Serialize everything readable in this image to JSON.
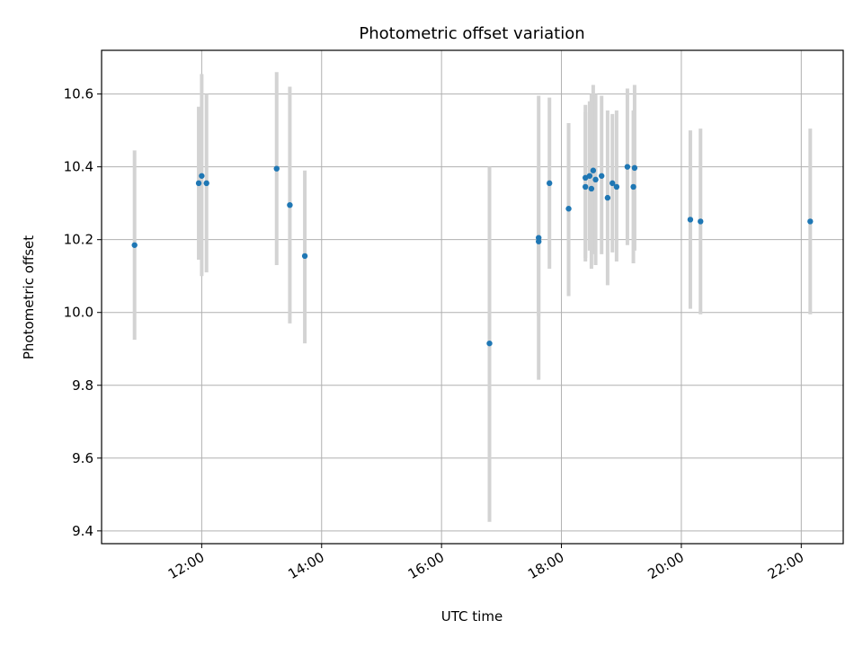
{
  "chart_data": {
    "type": "scatter",
    "title": "Photometric offset variation",
    "xlabel": "UTC time",
    "ylabel": "Photometric offset",
    "x_unit": "hours UTC",
    "xlim": [
      10.33,
      22.7
    ],
    "ylim": [
      9.365,
      10.72
    ],
    "xticks": [
      {
        "value": 12,
        "label": "12:00"
      },
      {
        "value": 14,
        "label": "14:00"
      },
      {
        "value": 16,
        "label": "16:00"
      },
      {
        "value": 18,
        "label": "18:00"
      },
      {
        "value": 20,
        "label": "20:00"
      },
      {
        "value": 22,
        "label": "22:00"
      }
    ],
    "yticks": [
      {
        "value": 9.4,
        "label": "9.4"
      },
      {
        "value": 9.6,
        "label": "9.6"
      },
      {
        "value": 9.8,
        "label": "9.8"
      },
      {
        "value": 10.0,
        "label": "10.0"
      },
      {
        "value": 10.2,
        "label": "10.2"
      },
      {
        "value": 10.4,
        "label": "10.4"
      },
      {
        "value": 10.6,
        "label": "10.6"
      }
    ],
    "grid": true,
    "colors": {
      "point": "#1f77b4",
      "errorbar": "#d3d3d3",
      "grid": "#b0b0b0"
    },
    "points": [
      {
        "x": 10.88,
        "y": 10.185,
        "lo": 9.925,
        "hi": 10.445
      },
      {
        "x": 11.95,
        "y": 10.355,
        "lo": 10.145,
        "hi": 10.565
      },
      {
        "x": 12.0,
        "y": 10.375,
        "lo": 10.1,
        "hi": 10.655
      },
      {
        "x": 12.08,
        "y": 10.355,
        "lo": 10.11,
        "hi": 10.6
      },
      {
        "x": 13.25,
        "y": 10.395,
        "lo": 10.13,
        "hi": 10.66
      },
      {
        "x": 13.47,
        "y": 10.295,
        "lo": 9.97,
        "hi": 10.62
      },
      {
        "x": 13.72,
        "y": 10.155,
        "lo": 9.915,
        "hi": 10.39
      },
      {
        "x": 16.8,
        "y": 9.915,
        "lo": 9.425,
        "hi": 10.4
      },
      {
        "x": 17.62,
        "y": 10.205,
        "lo": 9.815,
        "hi": 10.595
      },
      {
        "x": 17.62,
        "y": 10.195,
        "lo": 9.99,
        "hi": 10.4
      },
      {
        "x": 17.8,
        "y": 10.355,
        "lo": 10.12,
        "hi": 10.59
      },
      {
        "x": 18.12,
        "y": 10.285,
        "lo": 10.045,
        "hi": 10.52
      },
      {
        "x": 18.4,
        "y": 10.37,
        "lo": 10.14,
        "hi": 10.57
      },
      {
        "x": 18.4,
        "y": 10.345,
        "lo": 10.15,
        "hi": 10.55
      },
      {
        "x": 18.47,
        "y": 10.375,
        "lo": 10.17,
        "hi": 10.58
      },
      {
        "x": 18.5,
        "y": 10.34,
        "lo": 10.12,
        "hi": 10.6
      },
      {
        "x": 18.53,
        "y": 10.39,
        "lo": 10.16,
        "hi": 10.625
      },
      {
        "x": 18.57,
        "y": 10.365,
        "lo": 10.13,
        "hi": 10.6
      },
      {
        "x": 18.67,
        "y": 10.375,
        "lo": 10.16,
        "hi": 10.595
      },
      {
        "x": 18.77,
        "y": 10.315,
        "lo": 10.075,
        "hi": 10.555
      },
      {
        "x": 18.85,
        "y": 10.355,
        "lo": 10.165,
        "hi": 10.545
      },
      {
        "x": 18.92,
        "y": 10.345,
        "lo": 10.14,
        "hi": 10.555
      },
      {
        "x": 19.1,
        "y": 10.4,
        "lo": 10.185,
        "hi": 10.615
      },
      {
        "x": 19.2,
        "y": 10.345,
        "lo": 10.135,
        "hi": 10.555
      },
      {
        "x": 19.22,
        "y": 10.397,
        "lo": 10.17,
        "hi": 10.625
      },
      {
        "x": 20.15,
        "y": 10.255,
        "lo": 10.01,
        "hi": 10.5
      },
      {
        "x": 20.32,
        "y": 10.25,
        "lo": 9.995,
        "hi": 10.505
      },
      {
        "x": 22.15,
        "y": 10.25,
        "lo": 9.995,
        "hi": 10.505
      }
    ]
  }
}
